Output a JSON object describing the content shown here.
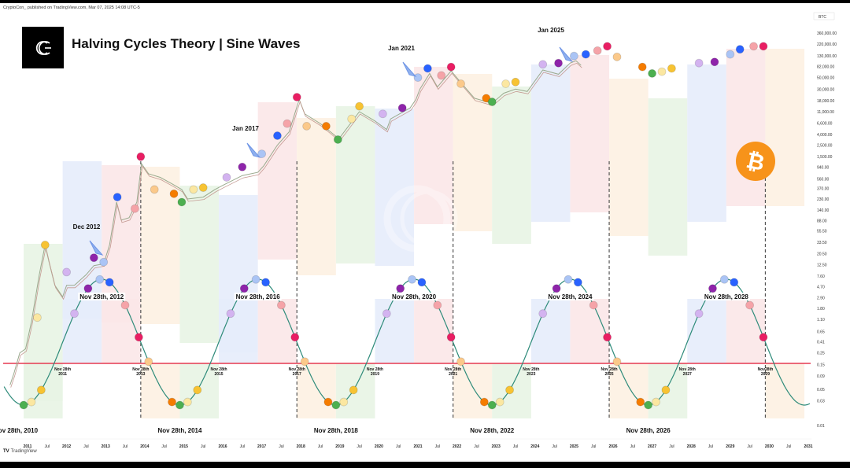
{
  "header": {
    "published": "CryptoCon_ published on TradingView.com, Mar 07, 2025 14:08 UTC-5",
    "title": "Halving Cycles Theory | Sine Waves",
    "logo_icon": "cryptocon-c-logo-icon"
  },
  "footer": {
    "brand": "TradingView",
    "brand_icon": "tradingview-logo-icon"
  },
  "chart_data": {
    "type": "line",
    "title": "Halving Cycles Theory | Sine Waves",
    "symbol": "BTC",
    "y_scale": "log",
    "ylim": [
      0.01,
      360000
    ],
    "y_ticks": [
      "360,000.00",
      "220,000.00",
      "130,000.00",
      "82,000.00",
      "50,000.00",
      "30,000.00",
      "18,000.00",
      "11,000.00",
      "6,600.00",
      "4,000.00",
      "2,500.00",
      "1,500.00",
      "940.00",
      "560.00",
      "370.00",
      "230.00",
      "140.00",
      "88.00",
      "55.50",
      "33.50",
      "20.50",
      "12.50",
      "7.60",
      "4.70",
      "2.90",
      "1.80",
      "1.10",
      "0.65",
      "0.41",
      "0.25",
      "0.15",
      "0.09",
      "0.05",
      "0.03",
      "0.01"
    ],
    "y_tick_values": [
      360000,
      220000,
      130000,
      82000,
      50000,
      30000,
      18000,
      11000,
      6600,
      4000,
      2500,
      1500,
      940,
      560,
      370,
      230,
      140,
      88,
      55.5,
      33.5,
      20.5,
      12.5,
      7.6,
      4.7,
      2.9,
      1.8,
      1.1,
      0.65,
      0.41,
      0.25,
      0.15,
      0.09,
      0.05,
      0.03,
      0.01
    ],
    "x_ticks": [
      "2011",
      "Jul",
      "2012",
      "Jul",
      "2013",
      "Jul",
      "2014",
      "Jul",
      "2015",
      "Jul",
      "2016",
      "Jul",
      "2017",
      "Jul",
      "2018",
      "Jul",
      "2019",
      "Jul",
      "2020",
      "Jul",
      "2021",
      "Jul",
      "2022",
      "Jul",
      "2023",
      "Jul",
      "2024",
      "Jul",
      "2025",
      "Jul",
      "2026",
      "Jul",
      "2027",
      "Jul",
      "2028",
      "Jul",
      "2029",
      "Jul",
      "2030",
      "Jul",
      "2031"
    ],
    "xlim": [
      2010.5,
      2031.0
    ],
    "price_series": {
      "name": "BTC price (approx.)",
      "points": [
        [
          2010.55,
          0.06
        ],
        [
          2010.65,
          0.1
        ],
        [
          2010.8,
          0.25
        ],
        [
          2010.95,
          0.3
        ],
        [
          2011.1,
          1.0
        ],
        [
          2011.3,
          8
        ],
        [
          2011.45,
          30
        ],
        [
          2011.55,
          14
        ],
        [
          2011.7,
          5
        ],
        [
          2011.9,
          3
        ],
        [
          2012.0,
          5
        ],
        [
          2012.2,
          5
        ],
        [
          2012.5,
          8
        ],
        [
          2012.7,
          12
        ],
        [
          2012.95,
          13
        ],
        [
          2013.1,
          30
        ],
        [
          2013.28,
          200
        ],
        [
          2013.4,
          90
        ],
        [
          2013.6,
          100
        ],
        [
          2013.8,
          200
        ],
        [
          2013.92,
          1100
        ],
        [
          2014.1,
          700
        ],
        [
          2014.4,
          600
        ],
        [
          2014.7,
          450
        ],
        [
          2014.95,
          350
        ],
        [
          2015.1,
          230
        ],
        [
          2015.5,
          250
        ],
        [
          2015.8,
          350
        ],
        [
          2016.0,
          420
        ],
        [
          2016.5,
          650
        ],
        [
          2016.9,
          750
        ],
        [
          2017.05,
          1000
        ],
        [
          2017.4,
          2500
        ],
        [
          2017.7,
          4500
        ],
        [
          2017.96,
          19000
        ],
        [
          2018.1,
          10000
        ],
        [
          2018.5,
          6500
        ],
        [
          2018.9,
          3700
        ],
        [
          2019.0,
          3500
        ],
        [
          2019.5,
          11000
        ],
        [
          2019.9,
          7300
        ],
        [
          2020.2,
          5000
        ],
        [
          2020.3,
          8000
        ],
        [
          2020.8,
          13000
        ],
        [
          2020.95,
          19000
        ],
        [
          2021.05,
          30000
        ],
        [
          2021.3,
          60000
        ],
        [
          2021.5,
          33000
        ],
        [
          2021.85,
          67000
        ],
        [
          2022.1,
          40000
        ],
        [
          2022.45,
          20000
        ],
        [
          2022.9,
          16000
        ],
        [
          2023.2,
          25000
        ],
        [
          2023.5,
          30000
        ],
        [
          2023.8,
          27000
        ],
        [
          2024.2,
          70000
        ],
        [
          2024.6,
          58000
        ],
        [
          2024.9,
          95000
        ],
        [
          2025.05,
          105000
        ],
        [
          2025.18,
          86000
        ]
      ]
    },
    "sine_wave": {
      "name": "Halving cycle sine wave",
      "period_years": 4,
      "baseline_value": 0.15,
      "peaks": [
        "Nov 28th, 2012",
        "Nov 28th, 2016",
        "Nov 28th, 2020",
        "Nov 28th, 2024",
        "Nov 28th, 2028"
      ],
      "troughs": [
        "Nov 28th, 2010",
        "Nov 28th, 2014",
        "Nov 28th, 2018",
        "Nov 28th, 2022",
        "Nov 28th, 2026"
      ],
      "zero_crossings": [
        {
          "line1": "Nov 28th",
          "line2": "2011"
        },
        {
          "line1": "Nov 28th",
          "line2": "2013"
        },
        {
          "line1": "Nov 28th",
          "line2": "2015"
        },
        {
          "line1": "Nov 28th",
          "line2": "2017"
        },
        {
          "line1": "Nov 28th",
          "line2": "2019"
        },
        {
          "line1": "Nov 28th",
          "line2": "2021"
        },
        {
          "line1": "Nov 28th",
          "line2": "2023"
        },
        {
          "line1": "Nov 28th",
          "line2": "2025"
        },
        {
          "line1": "Nov 28th",
          "line2": "2027"
        },
        {
          "line1": "Nov28th",
          "line2": "2029"
        }
      ]
    },
    "annotations": [
      {
        "text": "Dec 2012",
        "date": 2012.95,
        "value": 13
      },
      {
        "text": "Jan 2017",
        "date": 2017.05,
        "value": 1000
      },
      {
        "text": "Jan 2021",
        "date": 2021.05,
        "value": 30000
      },
      {
        "text": "Jan 2025",
        "date": 2025.05,
        "value": 100000
      }
    ],
    "phase_colors": {
      "green": "#4caf50",
      "pale-yellow": "#fbe7a1",
      "yellow": "#f7c333",
      "lavender": "#d3b3f0",
      "purple": "#8e24aa",
      "light-blue": "#aac4f5",
      "blue": "#2962ff",
      "pink": "#f5a3a8",
      "red": "#e91e63",
      "peach": "#fbc98a",
      "orange": "#f57c00"
    },
    "price_markers": [
      {
        "d": 2011.45,
        "v": 30,
        "c": "yellow"
      },
      {
        "d": 2011.25,
        "v": 1.2,
        "c": "pale-yellow"
      },
      {
        "d": 2012.0,
        "v": 9,
        "c": "lavender"
      },
      {
        "d": 2012.7,
        "v": 17,
        "c": "purple"
      },
      {
        "d": 2012.95,
        "v": 14,
        "c": "light-blue"
      },
      {
        "d": 2013.3,
        "v": 250,
        "c": "blue"
      },
      {
        "d": 2013.75,
        "v": 150,
        "c": "pink"
      },
      {
        "d": 2013.9,
        "v": 1500,
        "c": "red"
      },
      {
        "d": 2014.25,
        "v": 350,
        "c": "peach"
      },
      {
        "d": 2014.75,
        "v": 290,
        "c": "orange"
      },
      {
        "d": 2014.95,
        "v": 200,
        "c": "green"
      },
      {
        "d": 2015.25,
        "v": 350,
        "c": "pale-yellow"
      },
      {
        "d": 2015.5,
        "v": 380,
        "c": "yellow"
      },
      {
        "d": 2016.1,
        "v": 600,
        "c": "lavender"
      },
      {
        "d": 2016.5,
        "v": 950,
        "c": "purple"
      },
      {
        "d": 2017.0,
        "v": 1700,
        "c": "light-blue"
      },
      {
        "d": 2017.4,
        "v": 3800,
        "c": "blue"
      },
      {
        "d": 2017.65,
        "v": 6500,
        "c": "pink"
      },
      {
        "d": 2017.9,
        "v": 21000,
        "c": "red"
      },
      {
        "d": 2018.15,
        "v": 5800,
        "c": "peach"
      },
      {
        "d": 2018.65,
        "v": 5800,
        "c": "orange"
      },
      {
        "d": 2018.95,
        "v": 3200,
        "c": "green"
      },
      {
        "d": 2019.3,
        "v": 8000,
        "c": "pale-yellow"
      },
      {
        "d": 2019.5,
        "v": 14000,
        "c": "yellow"
      },
      {
        "d": 2020.1,
        "v": 10000,
        "c": "lavender"
      },
      {
        "d": 2020.6,
        "v": 13000,
        "c": "purple"
      },
      {
        "d": 2021.0,
        "v": 50000,
        "c": "light-blue"
      },
      {
        "d": 2021.25,
        "v": 75000,
        "c": "blue"
      },
      {
        "d": 2021.6,
        "v": 55000,
        "c": "pink"
      },
      {
        "d": 2021.85,
        "v": 80000,
        "c": "red"
      },
      {
        "d": 2022.1,
        "v": 38000,
        "c": "peach"
      },
      {
        "d": 2022.75,
        "v": 20000,
        "c": "orange"
      },
      {
        "d": 2022.9,
        "v": 17000,
        "c": "green"
      },
      {
        "d": 2023.25,
        "v": 38000,
        "c": "pale-yellow"
      },
      {
        "d": 2023.5,
        "v": 41000,
        "c": "yellow"
      },
      {
        "d": 2024.2,
        "v": 90000,
        "c": "lavender"
      },
      {
        "d": 2024.6,
        "v": 95000,
        "c": "purple"
      },
      {
        "d": 2025.0,
        "v": 130000,
        "c": "light-blue"
      },
      {
        "d": 2025.3,
        "v": 140000,
        "c": "blue"
      },
      {
        "d": 2025.6,
        "v": 165000,
        "c": "pink"
      },
      {
        "d": 2025.85,
        "v": 200000,
        "c": "red"
      },
      {
        "d": 2026.1,
        "v": 125000,
        "c": "peach"
      },
      {
        "d": 2026.75,
        "v": 80000,
        "c": "orange"
      },
      {
        "d": 2027.0,
        "v": 60000,
        "c": "green"
      },
      {
        "d": 2027.25,
        "v": 65000,
        "c": "pale-yellow"
      },
      {
        "d": 2027.5,
        "v": 75000,
        "c": "yellow"
      },
      {
        "d": 2028.2,
        "v": 95000,
        "c": "lavender"
      },
      {
        "d": 2028.6,
        "v": 100000,
        "c": "purple"
      },
      {
        "d": 2029.0,
        "v": 140000,
        "c": "light-blue"
      },
      {
        "d": 2029.25,
        "v": 175000,
        "c": "blue"
      },
      {
        "d": 2029.6,
        "v": 200000,
        "c": "pink"
      },
      {
        "d": 2029.85,
        "v": 200000,
        "c": "red"
      }
    ],
    "phase_bands": [
      {
        "from": 2010.9,
        "to": 2011.9,
        "c": "green"
      },
      {
        "from": 2011.9,
        "to": 2012.9,
        "c": "blue"
      },
      {
        "from": 2012.9,
        "to": 2013.9,
        "c": "red"
      },
      {
        "from": 2013.9,
        "to": 2014.9,
        "c": "orange"
      },
      {
        "from": 2014.9,
        "to": 2015.9,
        "c": "green"
      },
      {
        "from": 2015.9,
        "to": 2016.9,
        "c": "blue"
      },
      {
        "from": 2016.9,
        "to": 2017.9,
        "c": "red"
      },
      {
        "from": 2017.9,
        "to": 2018.9,
        "c": "orange"
      },
      {
        "from": 2018.9,
        "to": 2019.9,
        "c": "green"
      },
      {
        "from": 2019.9,
        "to": 2020.9,
        "c": "blue"
      },
      {
        "from": 2020.9,
        "to": 2021.9,
        "c": "red"
      },
      {
        "from": 2021.9,
        "to": 2022.9,
        "c": "orange"
      },
      {
        "from": 2022.9,
        "to": 2023.9,
        "c": "green"
      },
      {
        "from": 2023.9,
        "to": 2024.9,
        "c": "blue"
      },
      {
        "from": 2024.9,
        "to": 2025.9,
        "c": "red"
      },
      {
        "from": 2025.9,
        "to": 2026.9,
        "c": "orange"
      },
      {
        "from": 2026.9,
        "to": 2027.9,
        "c": "green"
      },
      {
        "from": 2027.9,
        "to": 2028.9,
        "c": "blue"
      },
      {
        "from": 2028.9,
        "to": 2029.9,
        "c": "red"
      },
      {
        "from": 2029.9,
        "to": 2030.9,
        "c": "orange"
      }
    ],
    "cycle_tops_dashed": [
      2013.9,
      2017.9,
      2021.9,
      2025.9,
      2029.9
    ],
    "sine_markers_sequence": [
      "green",
      "pale-yellow",
      "yellow",
      "lavender",
      "purple",
      "light-blue",
      "blue",
      "pink",
      "red",
      "peach",
      "orange"
    ],
    "baseline_color": "#e53950",
    "sine_color": "#2e8b7a",
    "legend": "none",
    "grid": false
  }
}
